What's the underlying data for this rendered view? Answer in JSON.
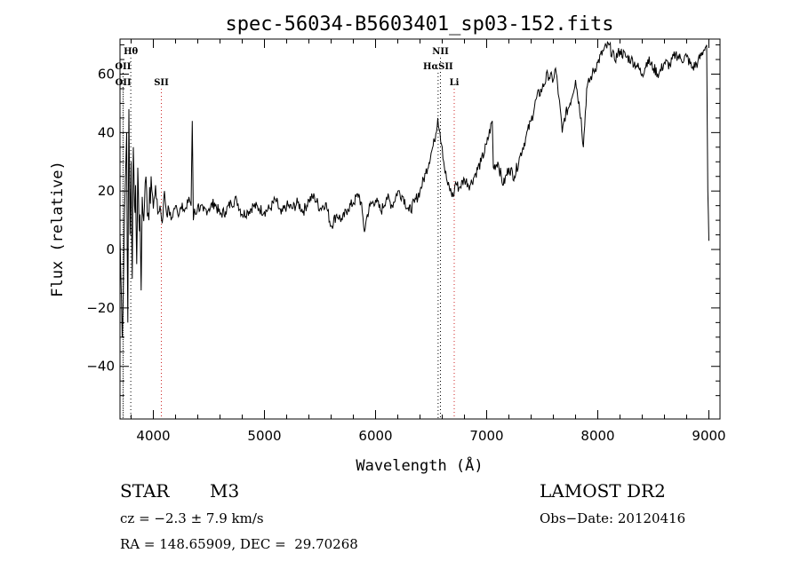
{
  "chart_data": {
    "type": "line",
    "title": "spec-56034-B5603401_sp03-152.fits",
    "xlabel": "Wavelength (Å)",
    "ylabel": "Flux (relative)",
    "xlim": [
      3700,
      9100
    ],
    "ylim": [
      -58,
      72
    ],
    "xticks": [
      4000,
      5000,
      6000,
      7000,
      8000,
      9000
    ],
    "yticks": [
      -40,
      -20,
      0,
      20,
      40,
      60
    ],
    "grid": false,
    "series": [
      {
        "x": [
          3700,
          3720,
          3740,
          3760,
          3770,
          3780,
          3790,
          3800,
          3810,
          3820,
          3830,
          3840,
          3850,
          3860,
          3870,
          3880,
          3890,
          3900,
          3920,
          3940,
          3960,
          3980,
          4000,
          4020,
          4040,
          4060,
          4080,
          4100,
          4120,
          4140,
          4160,
          4180,
          4200,
          4220,
          4240,
          4260,
          4280,
          4300,
          4320,
          4340,
          4350,
          4360,
          4370,
          4380,
          4400,
          4450,
          4500,
          4550,
          4600,
          4650,
          4700,
          4750,
          4800,
          4850,
          4900,
          4950,
          5000,
          5050,
          5100,
          5150,
          5200,
          5250,
          5300,
          5350,
          5400,
          5450,
          5500,
          5550,
          5600,
          5650,
          5700,
          5750,
          5800,
          5850,
          5880,
          5900,
          5920,
          5950,
          6000,
          6050,
          6100,
          6150,
          6200,
          6250,
          6300,
          6350,
          6400,
          6450,
          6500,
          6530,
          6560,
          6580,
          6600,
          6620,
          6650,
          6700,
          6720,
          6750,
          6800,
          6850,
          6900,
          6950,
          7000,
          7050,
          7060,
          7100,
          7150,
          7200,
          7250,
          7300,
          7350,
          7400,
          7450,
          7500,
          7550,
          7600,
          7620,
          7650,
          7680,
          7700,
          7750,
          7800,
          7850,
          7870,
          7900,
          7950,
          8000,
          8050,
          8100,
          8150,
          8200,
          8250,
          8300,
          8350,
          8400,
          8450,
          8500,
          8550,
          8600,
          8650,
          8700,
          8750,
          8800,
          8850,
          8900,
          8950,
          8980,
          8990,
          9000
        ],
        "y": [
          5,
          -30,
          12,
          40,
          -25,
          48,
          5,
          30,
          -10,
          35,
          15,
          22,
          -5,
          28,
          10,
          12,
          -14,
          18,
          15,
          20,
          10,
          25,
          14,
          22,
          12,
          15,
          9,
          20,
          12,
          14,
          10,
          13,
          15,
          12,
          14,
          16,
          13,
          14,
          18,
          15,
          44,
          10,
          14,
          12,
          15,
          13,
          14,
          16,
          12,
          13,
          16,
          17,
          12,
          13,
          15,
          14,
          13,
          14,
          17,
          12,
          15,
          14,
          16,
          13,
          17,
          18,
          14,
          16,
          8,
          12,
          10,
          14,
          16,
          19,
          13,
          6,
          11,
          15,
          17,
          13,
          18,
          15,
          20,
          18,
          13,
          16,
          20,
          26,
          33,
          37,
          45,
          40,
          35,
          28,
          22,
          18,
          23,
          21,
          24,
          22,
          26,
          30,
          36,
          44,
          28,
          30,
          22,
          28,
          25,
          32,
          38,
          44,
          52,
          55,
          60,
          58,
          62,
          52,
          40,
          45,
          50,
          58,
          45,
          35,
          55,
          60,
          64,
          68,
          70,
          65,
          68,
          66,
          65,
          63,
          60,
          65,
          62,
          60,
          64,
          63,
          67,
          65,
          66,
          62,
          64,
          68,
          70,
          20,
          3
        ]
      }
    ],
    "line_markers": [
      {
        "label": "Hθ",
        "x": 3797,
        "tier": 0,
        "color": "#000000"
      },
      {
        "label": "OII",
        "x": 3727,
        "tier": 1,
        "color": "#000000"
      },
      {
        "label": "OII",
        "x": 3729,
        "tier": 2,
        "color": "#000000"
      },
      {
        "label": "SII",
        "x": 4072,
        "tier": 2,
        "color": "#cc2222"
      },
      {
        "label": "NII",
        "x": 6584,
        "tier": 0,
        "color": "#000000"
      },
      {
        "label": "HαSII",
        "x": 6563,
        "tier": 1,
        "color": "#000000"
      },
      {
        "label": "Li",
        "x": 6708,
        "tier": 2,
        "color": "#cc2222"
      }
    ]
  },
  "info": {
    "object_class": "STAR",
    "subclass": "M3",
    "survey": "LAMOST DR2",
    "cz": "cz = −2.3 ± 7.9 km/s",
    "obs_date": "Obs−Date: 20120416",
    "radec": "RA = 148.65909, DEC =  29.70268"
  },
  "colors": {
    "line": "#000000",
    "marker_black": "#000000",
    "marker_red": "#cc2222"
  }
}
